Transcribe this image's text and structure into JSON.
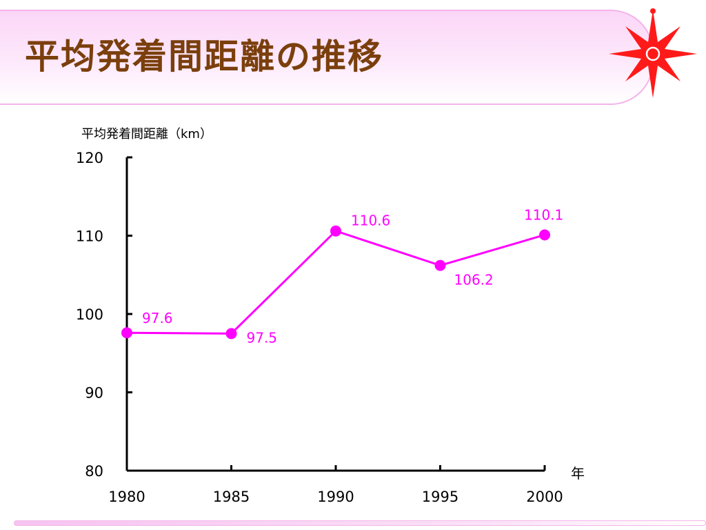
{
  "header": {
    "title": "平均発着間距離の推移",
    "logo_icon": "compass-star-icon"
  },
  "colors": {
    "title_text": "#7a3f0c",
    "banner_fill": "#fbd6f7",
    "banner_border": "#f3b3ea",
    "series": "#ff00ff",
    "axis": "#000000",
    "logo": "#ff1a1a"
  },
  "chart_data": {
    "type": "line",
    "title": "",
    "ylabel": "平均発着間距離（km）",
    "xlabel": "年",
    "ylim": [
      80,
      120
    ],
    "yticks": [
      80,
      90,
      100,
      110,
      120
    ],
    "x": [
      1980,
      1985,
      1990,
      1995,
      2000
    ],
    "x_tick_labels": [
      "1980",
      "1985",
      "1990",
      "1995",
      "2000"
    ],
    "series": [
      {
        "values": [
          97.6,
          97.5,
          110.6,
          106.2,
          110.1
        ],
        "data_labels": [
          "97.6",
          "97.5",
          "110.6",
          "106.2",
          "110.1"
        ]
      }
    ],
    "grid": false,
    "legend": "none"
  }
}
